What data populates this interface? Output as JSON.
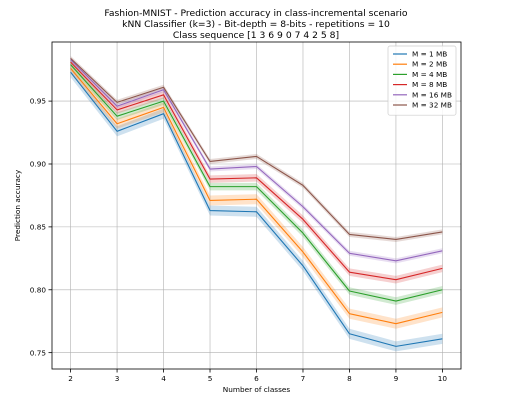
{
  "chart_data": {
    "type": "line",
    "title": [
      "Fashion-MNIST - Prediction accuracy in class-incremental scenario",
      "kNN Classifier (k=3) - Bit-depth = 8-bits - repetitions = 10",
      "Class sequence [1 3 6 9 0 7 4 2 5 8]"
    ],
    "xlabel": "Number of classes",
    "ylabel": "Prediction accuracy",
    "x": [
      2,
      3,
      4,
      5,
      6,
      7,
      8,
      9,
      10
    ],
    "xlim": [
      1.6,
      10.4
    ],
    "ylim": [
      0.737,
      0.997
    ],
    "xticks": [
      "2",
      "3",
      "4",
      "5",
      "6",
      "7",
      "8",
      "9",
      "10"
    ],
    "yticks": [
      "0.75",
      "0.80",
      "0.85",
      "0.90",
      "0.95"
    ],
    "ytick_values": [
      0.75,
      0.8,
      0.85,
      0.9,
      0.95
    ],
    "grid": true,
    "legend_position": "top-right",
    "series": [
      {
        "name": "M = 1 MB",
        "color": "#1f77b4",
        "values": [
          0.973,
          0.926,
          0.94,
          0.863,
          0.862,
          0.819,
          0.765,
          0.755,
          0.761
        ],
        "band": 0.004
      },
      {
        "name": "M = 2 MB",
        "color": "#ff7f0e",
        "values": [
          0.976,
          0.932,
          0.945,
          0.871,
          0.872,
          0.83,
          0.781,
          0.773,
          0.782
        ],
        "band": 0.004
      },
      {
        "name": "M = 4 MB",
        "color": "#2ca02c",
        "values": [
          0.979,
          0.938,
          0.95,
          0.882,
          0.882,
          0.845,
          0.799,
          0.791,
          0.8
        ],
        "band": 0.003
      },
      {
        "name": "M = 8 MB",
        "color": "#d62728",
        "values": [
          0.981,
          0.943,
          0.955,
          0.888,
          0.889,
          0.856,
          0.814,
          0.808,
          0.817
        ],
        "band": 0.003
      },
      {
        "name": "M = 16 MB",
        "color": "#9467bd",
        "values": [
          0.983,
          0.946,
          0.959,
          0.896,
          0.898,
          0.866,
          0.829,
          0.823,
          0.831
        ],
        "band": 0.002
      },
      {
        "name": "M = 32 MB",
        "color": "#8c564b",
        "values": [
          0.984,
          0.949,
          0.961,
          0.902,
          0.906,
          0.883,
          0.844,
          0.84,
          0.846
        ],
        "band": 0.002
      }
    ]
  }
}
